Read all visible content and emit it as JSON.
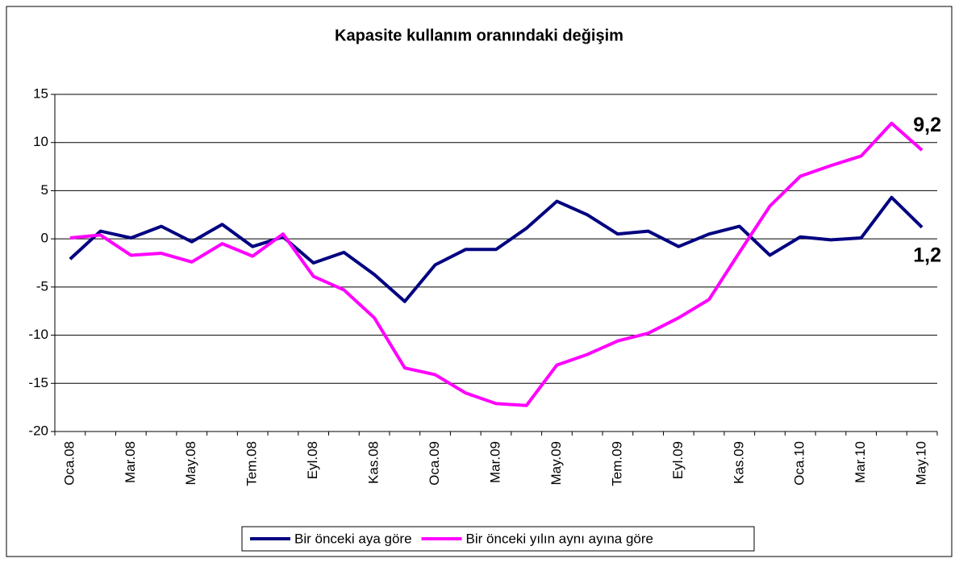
{
  "chart_data": {
    "type": "line",
    "title": "Kapasite kullanım oranındaki değişim",
    "categories": [
      "Oca.08",
      null,
      "Mar.08",
      null,
      "May.08",
      null,
      "Tem.08",
      null,
      "Eyl.08",
      null,
      "Kas.08",
      null,
      "Oca.09",
      null,
      "Mar.09",
      null,
      "May.09",
      null,
      "Tem.09",
      null,
      "Eyl.09",
      null,
      "Kas.09",
      null,
      "Oca.10",
      null,
      "Mar.10",
      null,
      "May.10"
    ],
    "series": [
      {
        "name": "Bir önceki aya göre",
        "color": "#000080",
        "values": [
          -2.1,
          0.8,
          0.1,
          1.3,
          -0.3,
          1.5,
          -0.8,
          0.2,
          -2.5,
          -1.4,
          -3.7,
          -6.5,
          -2.7,
          -1.1,
          -1.1,
          1.1,
          3.9,
          2.5,
          0.5,
          0.8,
          -0.8,
          0.5,
          1.3,
          -1.7,
          0.2,
          -0.1,
          0.1,
          4.3,
          1.2
        ]
      },
      {
        "name": "Bir önceki yılın aynı ayına göre",
        "color": "#ff00ff",
        "values": [
          0.1,
          0.4,
          -1.7,
          -1.5,
          -2.4,
          -0.5,
          -1.8,
          0.5,
          -3.9,
          -5.3,
          -8.2,
          -13.4,
          -14.1,
          -16.0,
          -17.1,
          -17.3,
          -13.1,
          -12.0,
          -10.6,
          -9.8,
          -8.2,
          -6.3,
          -1.4,
          3.4,
          6.5,
          7.6,
          8.6,
          12.0,
          9.2
        ]
      }
    ],
    "annotations": [
      "9,2",
      "1,2"
    ],
    "ylim": [
      -20,
      15
    ],
    "yticks": [
      -20,
      -15,
      -10,
      -5,
      0,
      5,
      10,
      15
    ],
    "grid": true,
    "legend": "bottom"
  }
}
